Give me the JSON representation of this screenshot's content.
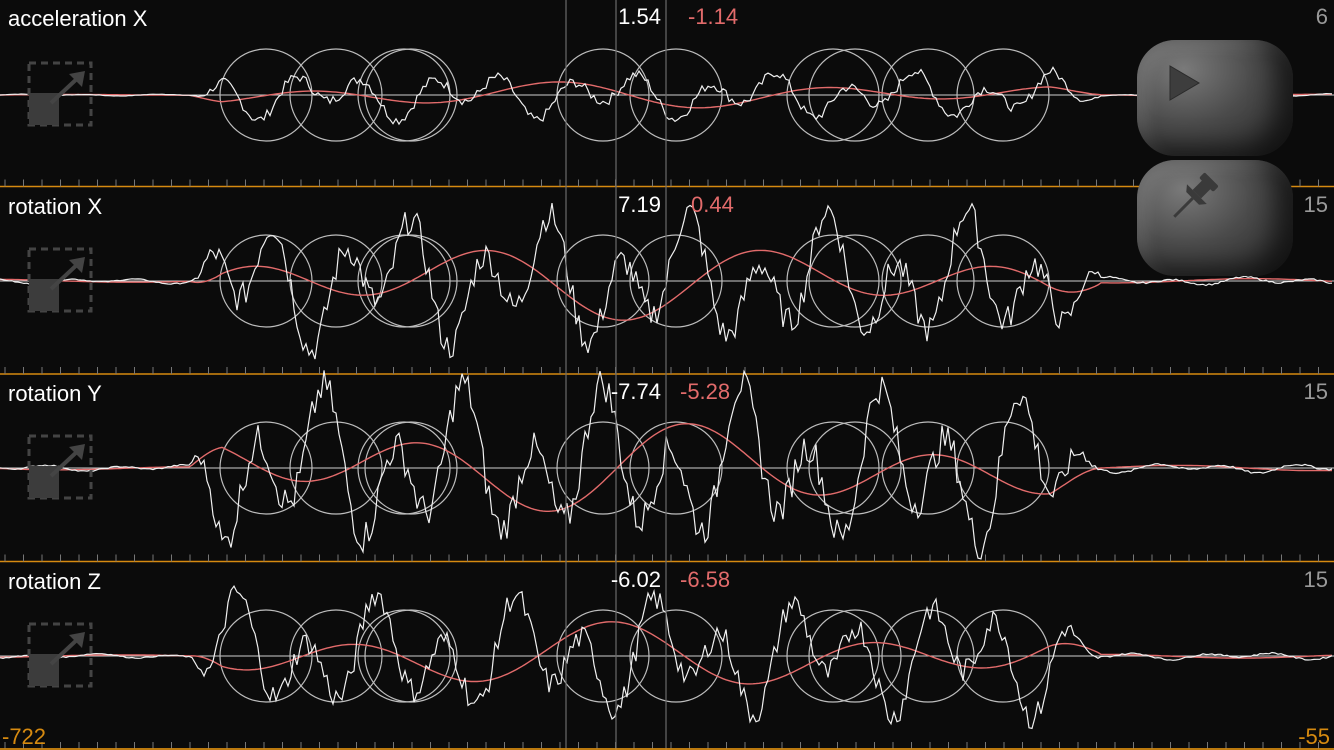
{
  "panels": [
    {
      "title": "acceleration X",
      "value": "1.54",
      "value2": "-1.14",
      "scale": "6"
    },
    {
      "title": "rotation X",
      "value": "7.19",
      "value2": "0.44",
      "scale": "15"
    },
    {
      "title": "rotation Y",
      "value": "-7.74",
      "value2": "-5.28",
      "scale": "15"
    },
    {
      "title": "rotation Z",
      "value": "-6.02",
      "value2": "-6.58",
      "scale": "15"
    }
  ],
  "footer": {
    "left": "-722",
    "right": "-55"
  },
  "buttons": {
    "play_icon": "play-icon",
    "pin_icon": "pin-icon"
  },
  "colors": {
    "background": "#0b0b0b",
    "raw_line": "#ffffff",
    "filtered_line": "#e26b6b",
    "separator": "#d68a10"
  }
}
